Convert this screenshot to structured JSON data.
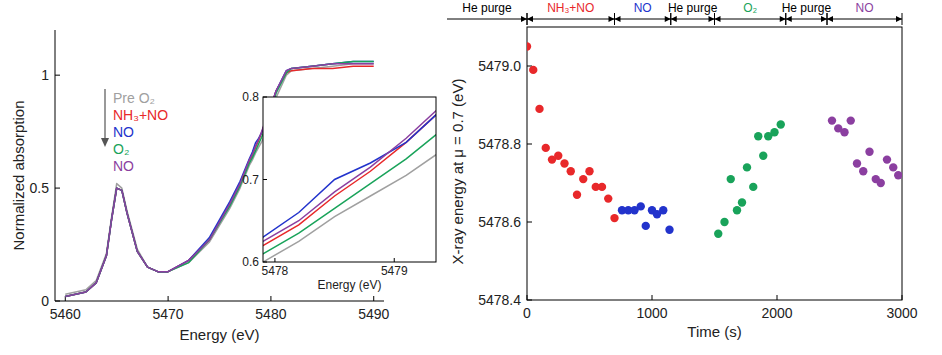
{
  "chart_data": [
    {
      "type": "line",
      "xlabel": "Energy (eV)",
      "ylabel": "Normalized absorption",
      "xlim": [
        5459,
        5491
      ],
      "ylim": [
        0,
        1.2
      ],
      "xticks": [
        5460,
        5470,
        5480,
        5490
      ],
      "yticks": [
        0,
        0.5,
        1
      ],
      "legend": "top-left",
      "x": [
        5460,
        5462,
        5463,
        5464,
        5464.5,
        5465,
        5465.5,
        5466,
        5467,
        5468,
        5469,
        5470,
        5472,
        5474,
        5476,
        5477,
        5477.9,
        5478.2,
        5478.5,
        5478.8,
        5479.1,
        5479.4,
        5479.7,
        5480.5,
        5481.5,
        5482,
        5484,
        5486,
        5488,
        5490
      ],
      "series": [
        {
          "name": "Pre O₂",
          "color": "#a0a0a0",
          "values": [
            0.03,
            0.05,
            0.09,
            0.21,
            0.37,
            0.52,
            0.5,
            0.4,
            0.23,
            0.15,
            0.13,
            0.13,
            0.17,
            0.26,
            0.41,
            0.5,
            0.6,
            0.625,
            0.655,
            0.68,
            0.705,
            0.735,
            0.77,
            0.9,
            1.0,
            1.02,
            1.03,
            1.04,
            1.05,
            1.05
          ]
        },
        {
          "name": "NH₃+NO",
          "color": "#e8282a",
          "values": [
            0.02,
            0.04,
            0.08,
            0.2,
            0.36,
            0.5,
            0.49,
            0.39,
            0.22,
            0.15,
            0.13,
            0.13,
            0.18,
            0.27,
            0.43,
            0.52,
            0.62,
            0.645,
            0.68,
            0.71,
            0.745,
            0.785,
            0.82,
            0.93,
            1.01,
            1.02,
            1.03,
            1.03,
            1.04,
            1.04
          ]
        },
        {
          "name": "NO",
          "color": "#2233cc",
          "values": [
            0.02,
            0.04,
            0.08,
            0.2,
            0.36,
            0.5,
            0.49,
            0.39,
            0.22,
            0.15,
            0.13,
            0.13,
            0.18,
            0.28,
            0.44,
            0.53,
            0.63,
            0.66,
            0.7,
            0.72,
            0.745,
            0.785,
            0.815,
            0.93,
            1.02,
            1.03,
            1.04,
            1.05,
            1.06,
            1.06
          ]
        },
        {
          "name": "O₂",
          "color": "#19a35a",
          "values": [
            0.02,
            0.04,
            0.08,
            0.2,
            0.36,
            0.5,
            0.49,
            0.39,
            0.22,
            0.15,
            0.13,
            0.13,
            0.17,
            0.27,
            0.42,
            0.51,
            0.61,
            0.635,
            0.665,
            0.695,
            0.725,
            0.76,
            0.79,
            0.92,
            1.01,
            1.03,
            1.04,
            1.05,
            1.06,
            1.06
          ]
        },
        {
          "name": "NO",
          "color": "#8b3fa0",
          "values": [
            0.02,
            0.04,
            0.08,
            0.2,
            0.36,
            0.5,
            0.49,
            0.39,
            0.22,
            0.15,
            0.13,
            0.13,
            0.18,
            0.27,
            0.43,
            0.52,
            0.625,
            0.65,
            0.685,
            0.715,
            0.75,
            0.79,
            0.825,
            0.93,
            1.02,
            1.03,
            1.04,
            1.05,
            1.05,
            1.05
          ]
        }
      ],
      "inset": {
        "xlabel": "Energy (eV)",
        "xlim": [
          5477.9,
          5479.35
        ],
        "ylim": [
          0.6,
          0.8
        ],
        "xticks": [
          5478,
          5479
        ],
        "yticks": [
          0.6,
          0.7,
          0.8
        ]
      }
    },
    {
      "type": "scatter",
      "xlabel": "Time (s)",
      "ylabel": "X-ray energy at μ = 0.7 (eV)",
      "xlim": [
        0,
        3000
      ],
      "ylim": [
        5478.4,
        5479.1
      ],
      "xticks": [
        0,
        1000,
        2000,
        3000
      ],
      "yticks": [
        5478.4,
        5478.6,
        5478.8,
        {
          "value": 5479,
          "label": "5479.0"
        }
      ],
      "marker": "circle",
      "phases": [
        {
          "label": "He purge",
          "start": null,
          "end": 0,
          "color": "#000000"
        },
        {
          "label": "NH₃+NO",
          "start": 0,
          "end": 700,
          "color": "#e8282a"
        },
        {
          "label": "NO",
          "start": 700,
          "end": 1150,
          "color": "#2233cc"
        },
        {
          "label": "He purge",
          "start": 1150,
          "end": 1500,
          "color": "#000000"
        },
        {
          "label": "O₂",
          "start": 1500,
          "end": 2070,
          "color": "#19a35a"
        },
        {
          "label": "He purge",
          "start": 2070,
          "end": 2400,
          "color": "#000000"
        },
        {
          "label": "NO",
          "start": 2400,
          "end": 3000,
          "color": "#8b3fa0"
        }
      ],
      "series": [
        {
          "color": "#e8282a",
          "x": [
            0,
            50,
            100,
            150,
            200,
            250,
            300,
            350,
            400,
            450,
            500,
            550,
            600,
            650,
            700
          ],
          "values": [
            5479.05,
            5478.99,
            5478.89,
            5478.79,
            5478.76,
            5478.77,
            5478.75,
            5478.73,
            5478.67,
            5478.71,
            5478.73,
            5478.69,
            5478.69,
            5478.66,
            5478.61
          ]
        },
        {
          "color": "#2233cc",
          "x": [
            760,
            810,
            860,
            910,
            950,
            1000,
            1040,
            1090,
            1140
          ],
          "values": [
            5478.63,
            5478.63,
            5478.63,
            5478.64,
            5478.59,
            5478.63,
            5478.62,
            5478.63,
            5478.58
          ]
        },
        {
          "color": "#19a35a",
          "x": [
            1530,
            1580,
            1630,
            1680,
            1720,
            1760,
            1810,
            1850,
            1890,
            1930,
            1980,
            2030
          ],
          "values": [
            5478.57,
            5478.6,
            5478.71,
            5478.63,
            5478.65,
            5478.74,
            5478.69,
            5478.82,
            5478.77,
            5478.82,
            5478.83,
            5478.85
          ]
        },
        {
          "color": "#8b3fa0",
          "x": [
            2440,
            2490,
            2540,
            2590,
            2640,
            2690,
            2740,
            2790,
            2830,
            2880,
            2930,
            2970
          ],
          "values": [
            5478.86,
            5478.84,
            5478.83,
            5478.86,
            5478.75,
            5478.73,
            5478.78,
            5478.71,
            5478.7,
            5478.76,
            5478.74,
            5478.72
          ]
        }
      ]
    }
  ]
}
